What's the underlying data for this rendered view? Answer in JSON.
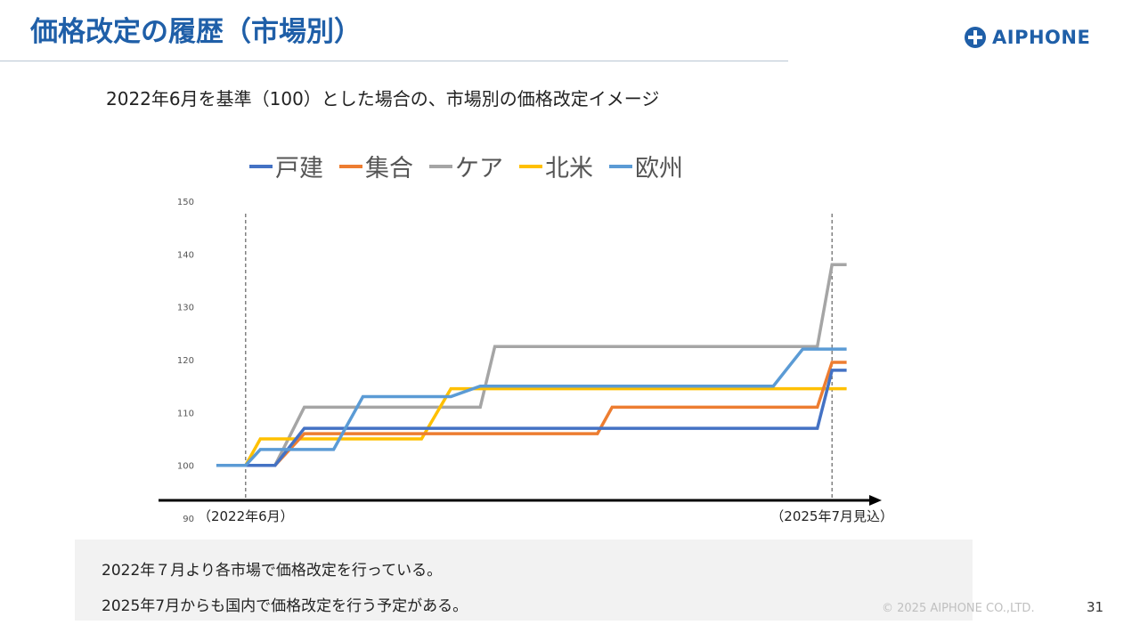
{
  "header": {
    "title": "価格改定の履歴（市場別）",
    "logo_text": "AIPHONE"
  },
  "subtitle": "2022年6月を基準（100）とした場合の、市場別の価格改定イメージ",
  "chart_data": {
    "type": "line",
    "yaxis_ticks": [
      "150",
      "140",
      "130",
      "120",
      "110",
      "100",
      "90"
    ],
    "ylim": [
      90,
      150
    ],
    "xlim": [
      0,
      24
    ],
    "x_annotations": [
      {
        "label": "（2022年6月）",
        "x": 2,
        "dashed_line": true
      },
      {
        "label": "（2025年7月見込）",
        "x": 22,
        "dashed_line": true
      }
    ],
    "grid": false,
    "legend_position": "top",
    "series": [
      {
        "name": "戸建",
        "color": "#4472c4",
        "points": [
          [
            2,
            100
          ],
          [
            3,
            100
          ],
          [
            4,
            107
          ],
          [
            6,
            107
          ],
          [
            10,
            107
          ],
          [
            12,
            107
          ],
          [
            15,
            107
          ],
          [
            18,
            107
          ],
          [
            20,
            107
          ],
          [
            21.5,
            107
          ],
          [
            22,
            118
          ],
          [
            22.5,
            118
          ]
        ]
      },
      {
        "name": "集合",
        "color": "#ed7d31",
        "points": [
          [
            2,
            100
          ],
          [
            3,
            100
          ],
          [
            4,
            106
          ],
          [
            7,
            106
          ],
          [
            11,
            106
          ],
          [
            14,
            106
          ],
          [
            14.5,
            111
          ],
          [
            17,
            111
          ],
          [
            19,
            111
          ],
          [
            21.5,
            111
          ],
          [
            22,
            119.5
          ],
          [
            22.5,
            119.5
          ]
        ]
      },
      {
        "name": "ケア",
        "color": "#a5a5a5",
        "points": [
          [
            2,
            100
          ],
          [
            3,
            100
          ],
          [
            4,
            111
          ],
          [
            6,
            111
          ],
          [
            8,
            111
          ],
          [
            10,
            111
          ],
          [
            10.5,
            122.5
          ],
          [
            13,
            122.5
          ],
          [
            16,
            122.5
          ],
          [
            19,
            122.5
          ],
          [
            21.5,
            122.5
          ],
          [
            22,
            138
          ],
          [
            22.5,
            138
          ]
        ]
      },
      {
        "name": "北米",
        "color": "#ffc000",
        "points": [
          [
            2,
            100
          ],
          [
            2.5,
            105
          ],
          [
            4,
            105
          ],
          [
            7,
            105
          ],
          [
            8,
            105
          ],
          [
            9,
            114.5
          ],
          [
            12,
            114.5
          ],
          [
            16,
            114.5
          ],
          [
            19,
            114.5
          ],
          [
            21,
            114.5
          ],
          [
            22,
            114.5
          ],
          [
            22.5,
            114.5
          ]
        ]
      },
      {
        "name": "欧州",
        "color": "#5b9bd5",
        "points": [
          [
            1,
            100
          ],
          [
            2,
            100
          ],
          [
            2.5,
            103
          ],
          [
            4,
            103
          ],
          [
            5,
            103
          ],
          [
            6,
            113
          ],
          [
            8,
            113
          ],
          [
            9,
            113
          ],
          [
            10,
            115
          ],
          [
            13,
            115
          ],
          [
            17,
            115
          ],
          [
            20,
            115
          ],
          [
            21,
            122
          ],
          [
            22.5,
            122
          ]
        ]
      }
    ]
  },
  "notes": [
    "2022年７月より各市場で価格改定を行っている。",
    "2025年7月からも国内で価格改定を行う予定がある。"
  ],
  "footer": {
    "copyright": "© 2025 AIPHONE CO.,LTD.",
    "page_number": "31"
  }
}
